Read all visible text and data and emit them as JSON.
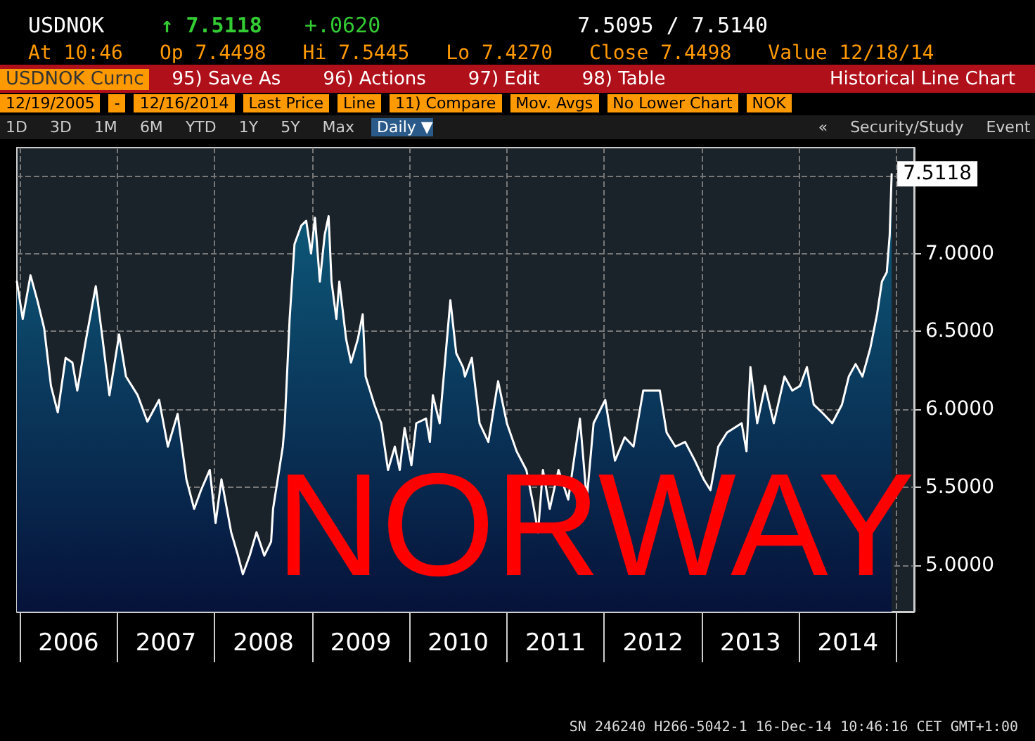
{
  "chart_data": {
    "type": "area",
    "title": "USDNOK",
    "subtitle": "Historical Line Chart",
    "annotations": [
      "↑ 7.5118",
      "+.0620",
      "7.5095 / 7.5140",
      "At 10:46",
      "Op 7.4498",
      "Hi 7.5445",
      "Lo 7.4270",
      "Close 7.4498",
      "Value 12/18/14",
      "USDNOK Curnc",
      "95) Save As",
      "96) Actions",
      "97) Edit",
      "98) Table",
      "12/19/2005",
      "-",
      "12/16/2014",
      "Last Price",
      "Line",
      "11) Compare",
      "Mov. Avgs",
      "No Lower Chart",
      "NOK",
      "1D",
      "3D",
      "1M",
      "6M",
      "YTD",
      "1Y",
      "5Y",
      "Max",
      "Daily ▼",
      "«",
      "Security/Study",
      "Event",
      "NORWAY",
      "SN 246240 H266-5042-1 16-Dec-14 10:46:16 CET GMT+1:00",
      {
        "text": "7.5118",
        "x": 2014.95,
        "y": 7.5118
      }
    ],
    "series": [
      {
        "color": "#ffffff",
        "x": [
          2005.97,
          2006.03,
          2006.11,
          2006.18,
          2006.25,
          2006.32,
          2006.39,
          2006.47,
          2006.54,
          2006.59,
          2006.68,
          2006.78,
          2006.85,
          2006.92,
          2007.02,
          2007.09,
          2007.21,
          2007.31,
          2007.43,
          2007.52,
          2007.62,
          2007.71,
          2007.79,
          2007.86,
          2007.95,
          2008.01,
          2008.07,
          2008.17,
          2008.24,
          2008.29,
          2008.36,
          2008.43,
          2008.51,
          2008.58,
          2008.6,
          2008.7,
          2008.72,
          2008.77,
          2008.82,
          2008.89,
          2008.94,
          2008.99,
          2009.03,
          2009.08,
          2009.13,
          2009.17,
          2009.2,
          2009.25,
          2009.28,
          2009.35,
          2009.4,
          2009.47,
          2009.52,
          2009.55,
          2009.64,
          2009.71,
          2009.78,
          2009.85,
          2009.9,
          2009.95,
          2010.02,
          2010.07,
          2010.17,
          2010.21,
          2010.24,
          2010.31,
          2010.36,
          2010.42,
          2010.48,
          2010.55,
          2010.57,
          2010.64,
          2010.72,
          2010.81,
          2010.91,
          2011.0,
          2011.1,
          2011.2,
          2011.27,
          2011.32,
          2011.37,
          2011.44,
          2011.53,
          2011.63,
          2011.75,
          2011.82,
          2011.89,
          2012.01,
          2012.11,
          2012.21,
          2012.3,
          2012.4,
          2012.49,
          2012.57,
          2012.64,
          2012.73,
          2012.83,
          2012.93,
          2013.02,
          2013.09,
          2013.17,
          2013.26,
          2013.41,
          2013.46,
          2013.5,
          2013.57,
          2013.65,
          2013.74,
          2013.85,
          2013.93,
          2014.01,
          2014.08,
          2014.15,
          2014.25,
          2014.34,
          2014.44,
          2014.51,
          2014.58,
          2014.65,
          2014.73,
          2014.8,
          2014.85,
          2014.9,
          2014.93,
          2014.95
        ],
        "values": [
          6.82,
          6.58,
          6.86,
          6.7,
          6.52,
          6.15,
          5.98,
          6.33,
          6.3,
          6.12,
          6.45,
          6.79,
          6.45,
          6.09,
          6.48,
          6.21,
          6.09,
          5.92,
          6.06,
          5.76,
          5.97,
          5.55,
          5.36,
          5.48,
          5.61,
          5.27,
          5.55,
          5.21,
          5.06,
          4.94,
          5.06,
          5.21,
          5.06,
          5.15,
          5.36,
          5.76,
          5.91,
          6.58,
          7.06,
          7.18,
          7.21,
          7.0,
          7.23,
          6.82,
          7.12,
          7.24,
          6.82,
          6.58,
          6.82,
          6.45,
          6.3,
          6.45,
          6.61,
          6.21,
          6.03,
          5.91,
          5.61,
          5.76,
          5.61,
          5.88,
          5.64,
          5.91,
          5.94,
          5.79,
          6.09,
          5.91,
          6.27,
          6.7,
          6.36,
          6.27,
          6.21,
          6.33,
          5.91,
          5.79,
          6.18,
          5.91,
          5.73,
          5.61,
          5.39,
          5.21,
          5.61,
          5.36,
          5.61,
          5.42,
          5.94,
          5.42,
          5.91,
          6.06,
          5.67,
          5.82,
          5.76,
          6.12,
          6.12,
          6.12,
          5.85,
          5.76,
          5.79,
          5.67,
          5.55,
          5.48,
          5.76,
          5.85,
          5.91,
          5.73,
          6.27,
          5.91,
          6.15,
          5.91,
          6.21,
          6.12,
          6.15,
          6.27,
          6.03,
          5.97,
          5.91,
          6.03,
          6.21,
          6.29,
          6.21,
          6.39,
          6.61,
          6.82,
          6.88,
          7.12,
          7.51
        ]
      }
    ],
    "xlim": [
      2005.97,
      2015.18
    ],
    "xticks": [
      {
        "value": 2006,
        "label": null
      },
      {
        "value": 2006.5,
        "label": "2006"
      },
      {
        "value": 2007,
        "label": null
      },
      {
        "value": 2007.5,
        "label": "2007"
      },
      {
        "value": 2008,
        "label": null
      },
      {
        "value": 2008.5,
        "label": "2008"
      },
      {
        "value": 2009,
        "label": null
      },
      {
        "value": 2009.5,
        "label": "2009"
      },
      {
        "value": 2010,
        "label": null
      },
      {
        "value": 2010.5,
        "label": "2010"
      },
      {
        "value": 2011,
        "label": null
      },
      {
        "value": 2011.5,
        "label": "2011"
      },
      {
        "value": 2012,
        "label": null
      },
      {
        "value": 2012.5,
        "label": "2012"
      },
      {
        "value": 2013,
        "label": null
      },
      {
        "value": 2013.5,
        "label": "2013"
      },
      {
        "value": 2014,
        "label": null
      },
      {
        "value": 2014.5,
        "label": "2014"
      },
      {
        "value": 2015,
        "label": null
      }
    ],
    "ylim": [
      4.7,
      7.68
    ],
    "yticks": [
      {
        "value": 5,
        "label": "5.0000"
      },
      {
        "value": 5.5,
        "label": "5.5000"
      },
      {
        "value": 6,
        "label": "6.0000"
      },
      {
        "value": 6.5,
        "label": "6.5000"
      },
      {
        "value": 7,
        "label": "7.0000"
      },
      {
        "value": 7.5,
        "label": null
      }
    ],
    "grid": true,
    "marker": "none",
    "line_style": "solid"
  }
}
